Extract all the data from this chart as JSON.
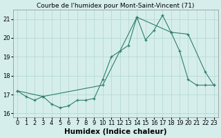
{
  "title": "Courbe de l'humidex pour Mont-Saint-Vincent (71)",
  "xlabel": "Humidex (Indice chaleur)",
  "ylabel": "",
  "x_line1": [
    0,
    1,
    2,
    3,
    4,
    5,
    6,
    7,
    8,
    9,
    10,
    11,
    12,
    13,
    14,
    15,
    16,
    17,
    18,
    19,
    20,
    21,
    22,
    23
  ],
  "y_line1": [
    17.2,
    16.9,
    16.7,
    16.9,
    16.5,
    16.3,
    16.4,
    16.7,
    16.7,
    16.8,
    17.8,
    19.0,
    19.3,
    19.6,
    21.1,
    19.9,
    20.4,
    21.2,
    20.3,
    19.3,
    17.8,
    17.5,
    17.5,
    17.5
  ],
  "x_line2": [
    0,
    3,
    10,
    14,
    18,
    20,
    22,
    23
  ],
  "y_line2": [
    17.2,
    16.9,
    17.5,
    21.1,
    20.3,
    20.2,
    18.2,
    17.5
  ],
  "x_ticks": [
    0,
    1,
    2,
    3,
    4,
    5,
    6,
    7,
    8,
    9,
    10,
    11,
    12,
    13,
    14,
    15,
    16,
    17,
    18,
    19,
    20,
    21,
    22,
    23
  ],
  "y_ticks": [
    16,
    17,
    18,
    19,
    20,
    21
  ],
  "ylim": [
    15.8,
    21.5
  ],
  "xlim": [
    -0.5,
    23.5
  ],
  "line_color": "#2e7d6e",
  "bg_color": "#d6eeeb",
  "grid_color": "#afd6d2",
  "title_fontsize": 6.5,
  "tick_fontsize": 6,
  "label_fontsize": 7.5
}
